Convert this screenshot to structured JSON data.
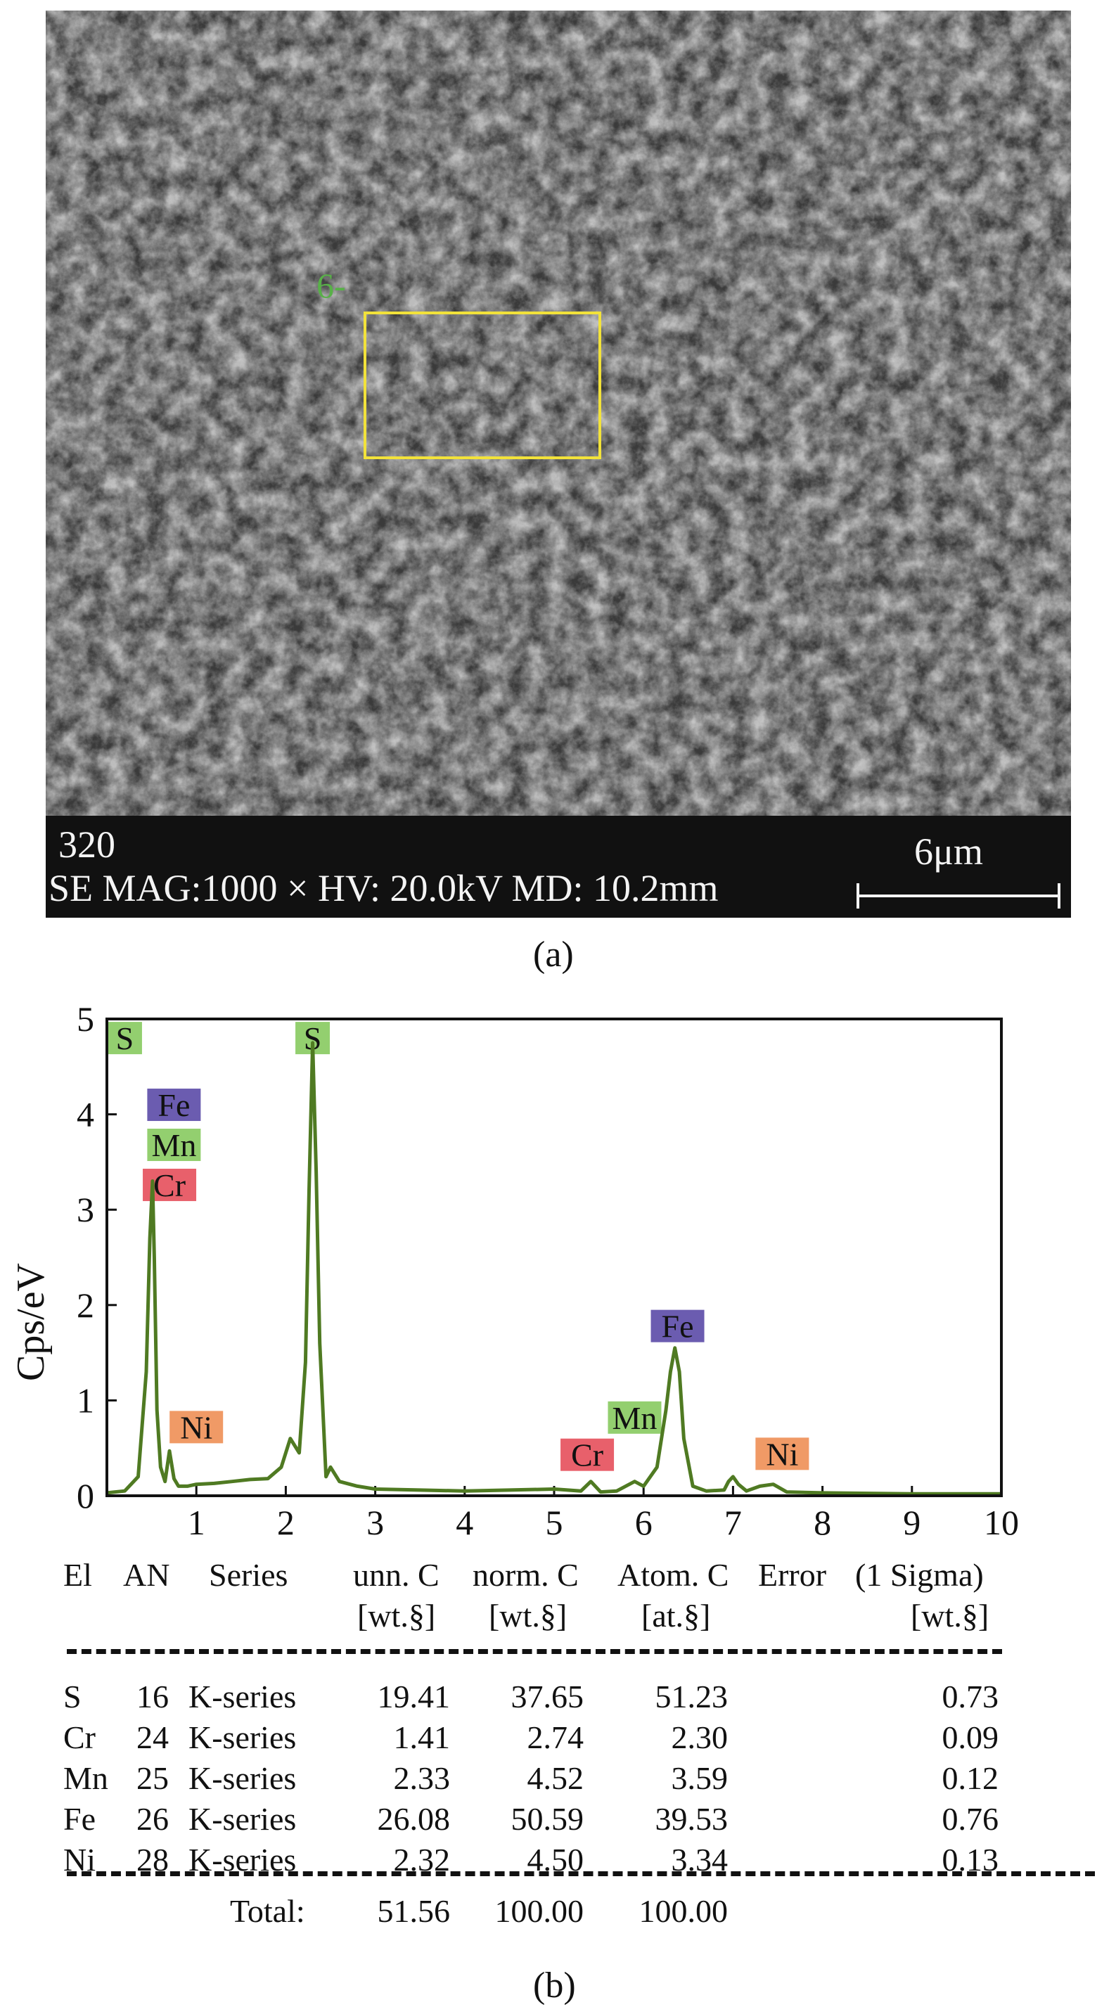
{
  "panel_a": {
    "region_label": "6-",
    "image_id": "320",
    "acquisition": "SE MAG:1000 × HV: 20.0kV MD: 10.2mm",
    "scale_bar_label": "6μm",
    "caption": "(a)"
  },
  "panel_b": {
    "caption": "(b)",
    "spectrum_line_color": "#4f7a22",
    "chart_data": {
      "type": "line",
      "title": "",
      "xlabel": "",
      "ylabel": "Cps/eV",
      "xlim": [
        0,
        10
      ],
      "ylim": [
        0,
        5
      ],
      "x_ticks": [
        1,
        2,
        3,
        4,
        5,
        6,
        7,
        8,
        9,
        10
      ],
      "y_ticks": [
        0,
        1,
        2,
        3,
        4,
        5
      ],
      "grid": false,
      "series": [
        {
          "x": [
            0.0,
            0.2,
            0.35,
            0.44,
            0.48,
            0.51,
            0.53,
            0.56,
            0.6,
            0.65,
            0.7,
            0.75,
            0.8,
            0.9,
            1.0,
            1.2,
            1.4,
            1.6,
            1.8,
            1.95,
            2.05,
            2.15,
            2.22,
            2.26,
            2.3,
            2.34,
            2.38,
            2.45,
            2.5,
            2.6,
            2.8,
            3.0,
            3.5,
            4.0,
            4.5,
            5.0,
            5.3,
            5.41,
            5.52,
            5.7,
            5.9,
            6.0,
            6.15,
            6.25,
            6.3,
            6.35,
            6.4,
            6.45,
            6.55,
            6.7,
            6.9,
            6.95,
            7.0,
            7.06,
            7.15,
            7.3,
            7.45,
            7.6,
            8.0,
            9.0,
            10.0
          ],
          "y": [
            0.03,
            0.05,
            0.2,
            1.3,
            2.7,
            3.3,
            2.5,
            0.9,
            0.3,
            0.15,
            0.47,
            0.18,
            0.1,
            0.1,
            0.12,
            0.13,
            0.15,
            0.17,
            0.18,
            0.3,
            0.6,
            0.45,
            1.4,
            3.2,
            4.75,
            3.4,
            1.6,
            0.2,
            0.3,
            0.15,
            0.1,
            0.07,
            0.06,
            0.05,
            0.06,
            0.07,
            0.05,
            0.15,
            0.04,
            0.05,
            0.15,
            0.1,
            0.3,
            0.9,
            1.3,
            1.55,
            1.3,
            0.6,
            0.1,
            0.05,
            0.06,
            0.15,
            0.2,
            0.12,
            0.05,
            0.1,
            0.12,
            0.04,
            0.03,
            0.02,
            0.02
          ]
        }
      ],
      "peak_labels": [
        {
          "text": "S",
          "x": 0.2,
          "y": 4.8,
          "color": "#93cf6f"
        },
        {
          "text": "Fe",
          "x": 0.75,
          "y": 4.1,
          "color": "#6b5cb0"
        },
        {
          "text": "Mn",
          "x": 0.75,
          "y": 3.68,
          "color": "#93cf6f"
        },
        {
          "text": "Cr",
          "x": 0.7,
          "y": 3.26,
          "color": "#e8606b"
        },
        {
          "text": "Ni",
          "x": 1.0,
          "y": 0.72,
          "color": "#f09a66"
        },
        {
          "text": "S",
          "x": 2.3,
          "y": 4.8,
          "color": "#93cf6f"
        },
        {
          "text": "Fe",
          "x": 6.38,
          "y": 1.78,
          "color": "#6b5cb0"
        },
        {
          "text": "Mn",
          "x": 5.9,
          "y": 0.82,
          "color": "#93cf6f"
        },
        {
          "text": "Cr",
          "x": 5.37,
          "y": 0.43,
          "color": "#e8606b"
        },
        {
          "text": "Ni",
          "x": 7.55,
          "y": 0.44,
          "color": "#f09a66"
        }
      ]
    }
  },
  "table": {
    "header": {
      "el": "El",
      "an": "AN",
      "series": "Series",
      "unn": "unn. C",
      "norm": "norm. C",
      "atom": "Atom. C",
      "error": "Error",
      "sigma": "(1 Sigma)",
      "unn_unit": "[wt.§]",
      "norm_unit": "[wt.§]",
      "atom_unit": "[at.§]",
      "error_unit": "[wt.§]"
    },
    "rows": [
      {
        "el": "S",
        "an": "16",
        "series": "K-series",
        "unn": "19.41",
        "norm": "37.65",
        "atom": "51.23",
        "error": "0.73"
      },
      {
        "el": "Cr",
        "an": "24",
        "series": "K-series",
        "unn": "1.41",
        "norm": "2.74",
        "atom": "2.30",
        "error": "0.09"
      },
      {
        "el": "Mn",
        "an": "25",
        "series": "K-series",
        "unn": "2.33",
        "norm": "4.52",
        "atom": "3.59",
        "error": "0.12"
      },
      {
        "el": "Fe",
        "an": "26",
        "series": "K-series",
        "unn": "26.08",
        "norm": "50.59",
        "atom": "39.53",
        "error": "0.76"
      },
      {
        "el": "Ni",
        "an": "28",
        "series": "K-series",
        "unn": "2.32",
        "norm": "4.50",
        "atom": "3.34",
        "error": "0.13"
      }
    ],
    "total": {
      "label": "Total:",
      "unn": "51.56",
      "norm": "100.00",
      "atom": "100.00"
    }
  }
}
